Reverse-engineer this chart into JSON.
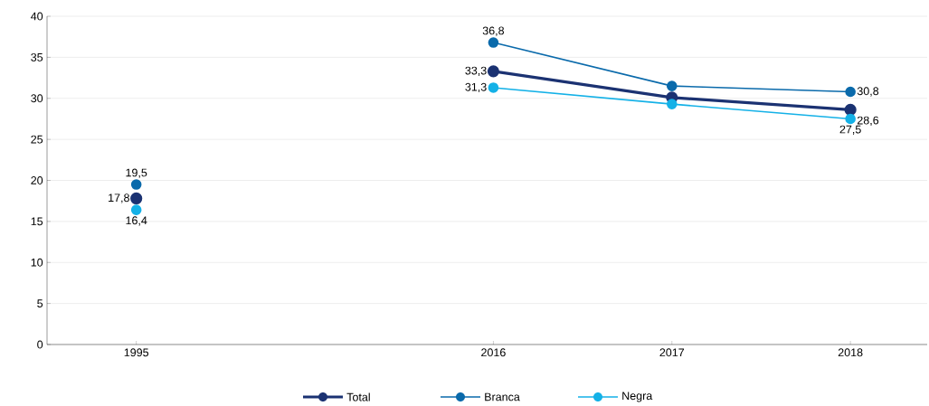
{
  "chart_data": {
    "type": "line",
    "categories": [
      "1995",
      null,
      "2016",
      "2017",
      "2018"
    ],
    "series": [
      {
        "name": "Total",
        "color": "#1b3272",
        "values": [
          17.8,
          null,
          33.3,
          30.1,
          28.6
        ],
        "value_labels": [
          "17,8",
          null,
          "33,3",
          null,
          "28,6"
        ]
      },
      {
        "name": "Branca",
        "color": "#0a6aab",
        "values": [
          19.5,
          null,
          36.8,
          31.5,
          30.8
        ],
        "value_labels": [
          "19,5",
          null,
          "36,8",
          null,
          "30,8"
        ]
      },
      {
        "name": "Negra",
        "color": "#14b1e7",
        "values": [
          16.4,
          null,
          31.3,
          29.3,
          27.5
        ],
        "value_labels": [
          "16,4",
          null,
          "31,3",
          null,
          "27,5"
        ]
      }
    ],
    "ylim": [
      0,
      40
    ],
    "yticks": [
      0,
      5,
      10,
      15,
      20,
      25,
      30,
      35,
      40
    ],
    "grid": "y",
    "legend": "bottom",
    "marker": "circle",
    "line_style": "solid"
  }
}
